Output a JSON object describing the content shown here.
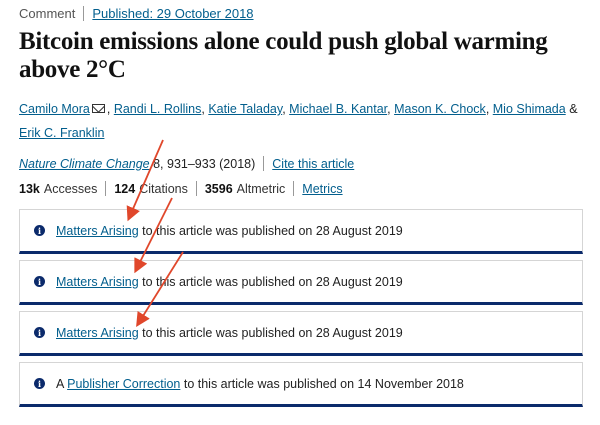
{
  "header": {
    "article_type": "Comment",
    "published_link": "Published: 29 October 2018"
  },
  "title": "Bitcoin emissions alone could push global warming above 2°C",
  "authors": [
    "Camilo Mora",
    "Randi L. Rollins",
    "Katie Taladay",
    "Michael B. Kantar",
    "Mason K. Chock",
    "Mio Shimada",
    "Erik C. Franklin"
  ],
  "author_separator": ", ",
  "author_last_separator": " & ",
  "citation": {
    "journal": "Nature Climate Change",
    "details": " 8, 931–933 (2018)",
    "cite_link": "Cite this article"
  },
  "metrics": {
    "accesses_value": "13k",
    "accesses_label": "Accesses",
    "citations_value": "124",
    "citations_label": "Citations",
    "altmetric_value": "3596",
    "altmetric_label": "Altmetric",
    "metrics_link": "Metrics"
  },
  "notices": [
    {
      "prefix": "",
      "link": "Matters Arising",
      "text": " to this article was published on 28 August 2019"
    },
    {
      "prefix": "",
      "link": "Matters Arising",
      "text": " to this article was published on 28 August 2019"
    },
    {
      "prefix": "",
      "link": "Matters Arising",
      "text": " to this article was published on 28 August 2019"
    },
    {
      "prefix": "A ",
      "link": "Publisher Correction",
      "text": " to this article was published on 14 November 2018"
    }
  ],
  "colors": {
    "link": "#025e8d",
    "notice_border": "#0b2a6b",
    "annotation_arrow": "#e0472b"
  }
}
